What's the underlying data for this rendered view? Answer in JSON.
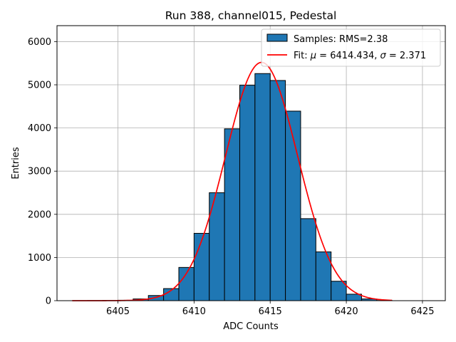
{
  "chart_data": {
    "type": "bar",
    "title": "Run 388, channel015, Pedestal",
    "xlabel": "ADC Counts",
    "ylabel": "Entries",
    "xlim": [
      6401.0,
      6426.5
    ],
    "ylim": [
      0,
      6370
    ],
    "xticks": [
      6405,
      6410,
      6415,
      6420,
      6425
    ],
    "yticks": [
      0,
      1000,
      2000,
      3000,
      4000,
      5000,
      6000
    ],
    "grid": true,
    "legend_position": "top-right",
    "bin_width": 1,
    "series": [
      {
        "name": "Samples: RMS=2.38",
        "type": "bar",
        "color": "#1f77b4",
        "edgecolor": "#000000",
        "bin_left_edges": [
          6402,
          6403,
          6404,
          6405,
          6406,
          6407,
          6408,
          6409,
          6410,
          6411,
          6412,
          6413,
          6414,
          6415,
          6416,
          6417,
          6418,
          6419,
          6420,
          6421,
          6422
        ],
        "values": [
          0,
          2,
          5,
          10,
          40,
          120,
          280,
          770,
          1560,
          2500,
          3980,
          4990,
          5260,
          5100,
          4390,
          1900,
          1130,
          450,
          150,
          40,
          5
        ]
      },
      {
        "name": "Fit: $\\mu$ = 6414.434, $\\sigma$ = 2.371",
        "type": "line",
        "color": "#ff0000",
        "fit": {
          "amplitude": 5520,
          "mu": 6414.434,
          "sigma": 2.371,
          "x_start": 6402,
          "x_end": 6423
        }
      }
    ],
    "legend": {
      "hist_label_plain": "Samples: RMS=2.38",
      "fit_prefix": "Fit: ",
      "mu_symbol": "μ",
      "mu_text": " = 6414.434, ",
      "sigma_symbol": "σ",
      "sigma_text": " = 2.371"
    }
  }
}
